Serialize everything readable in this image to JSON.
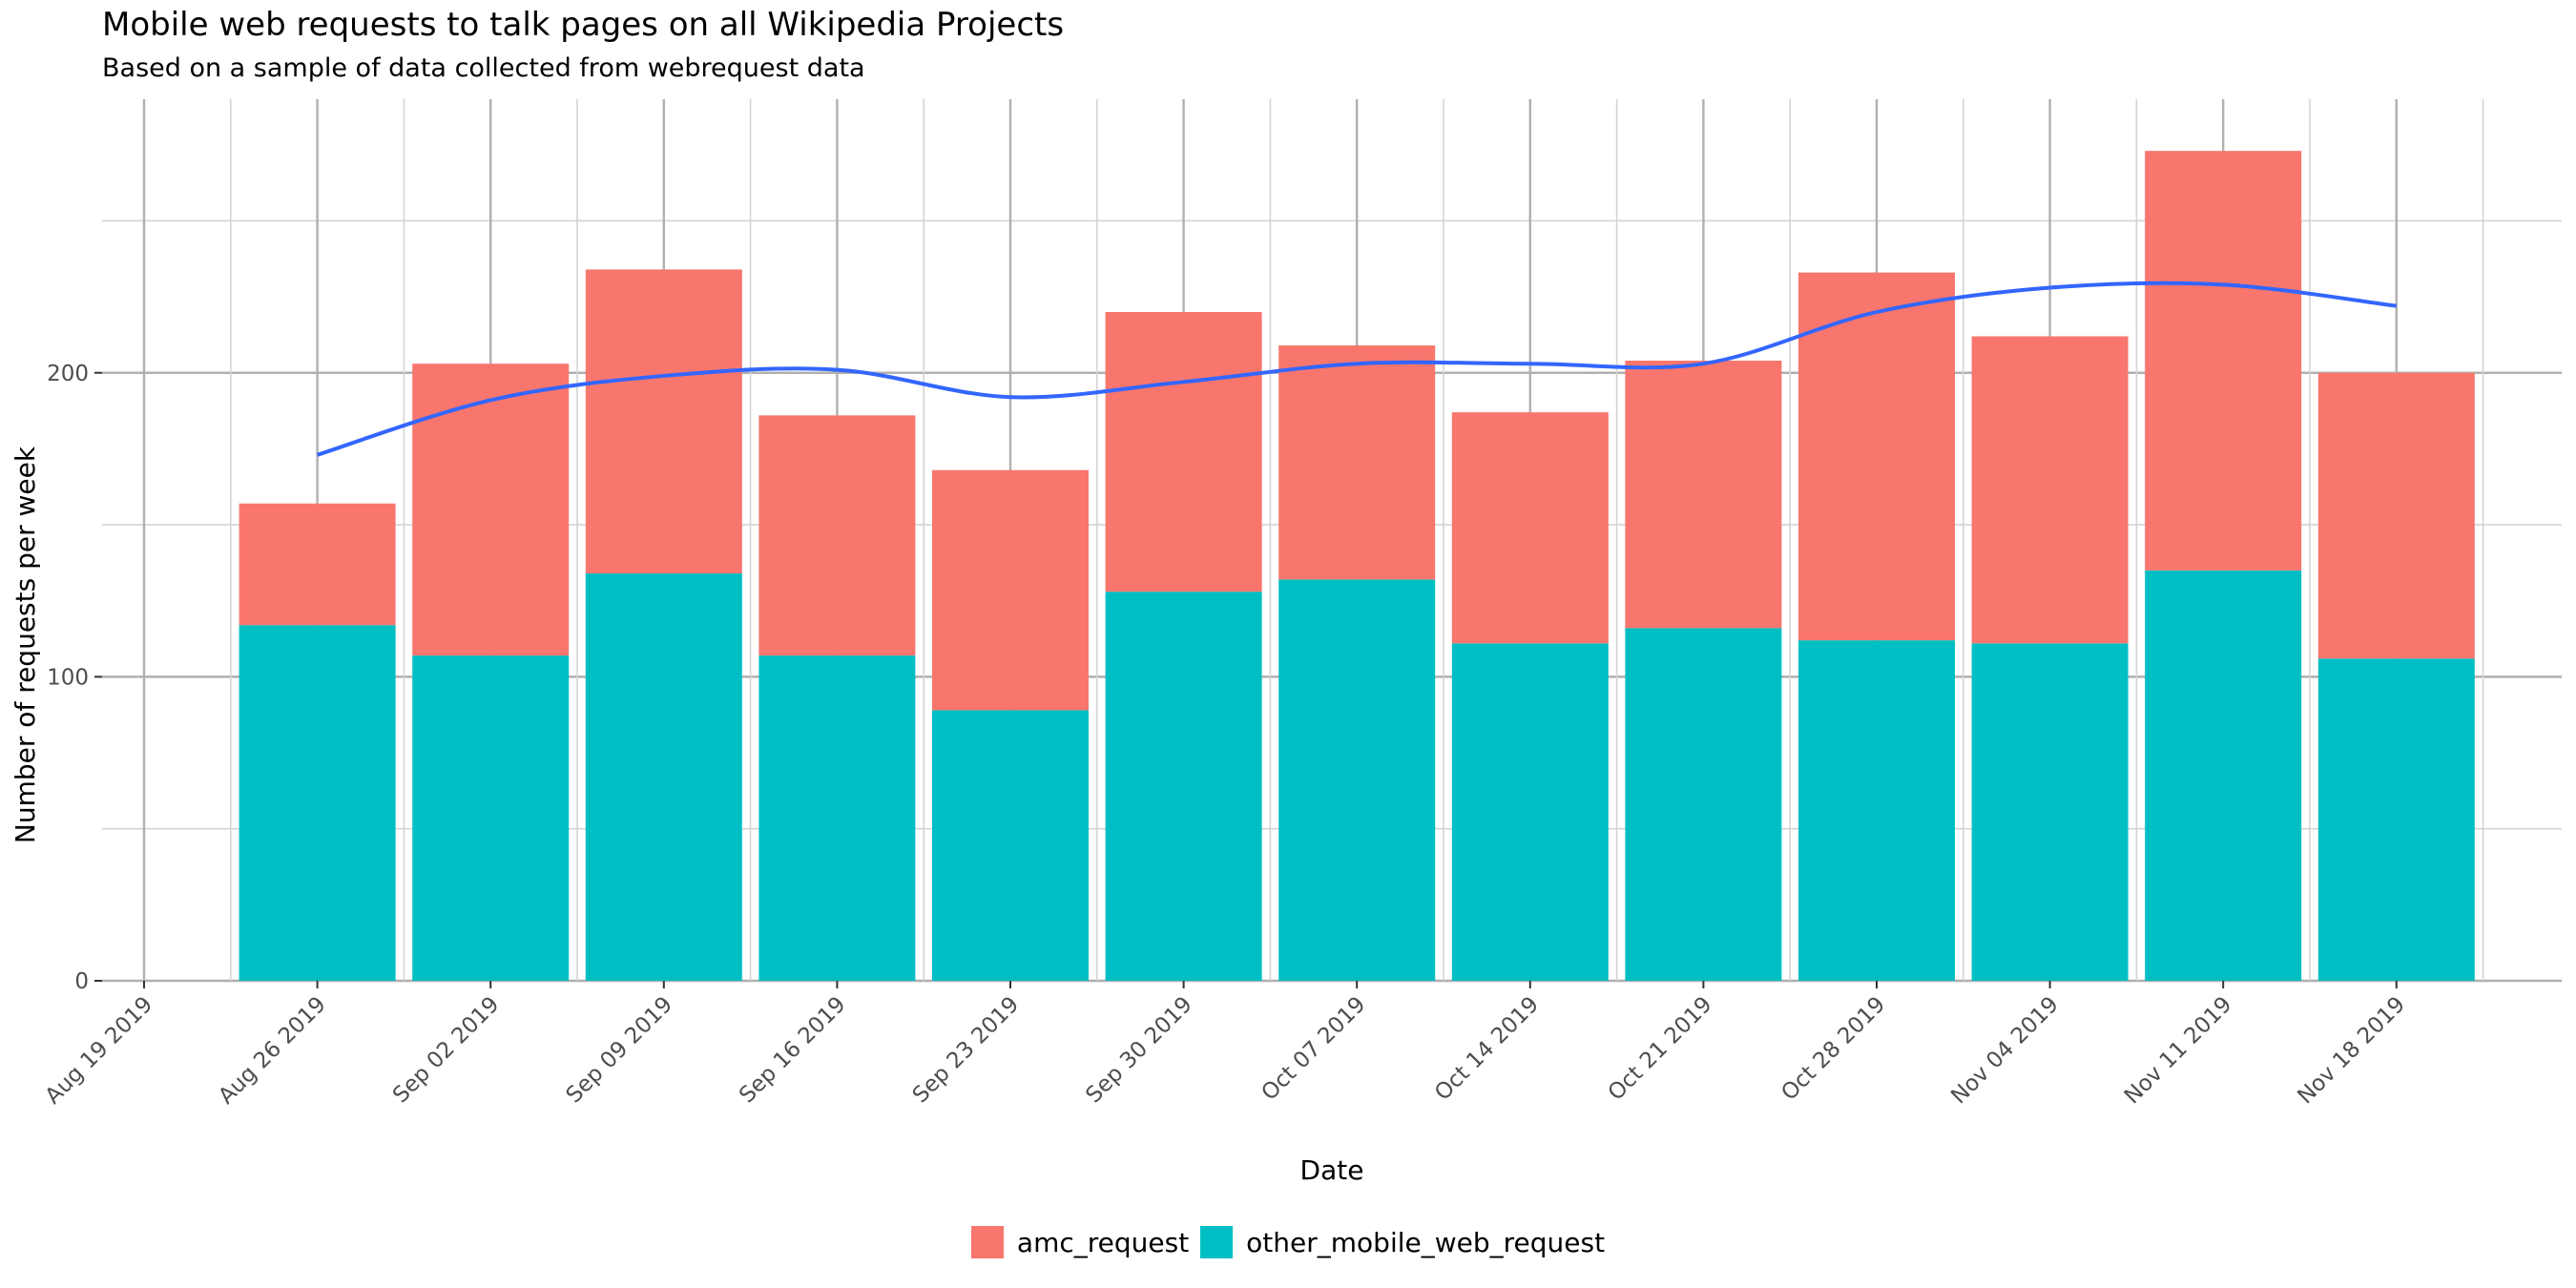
{
  "chart_data": {
    "type": "bar",
    "stacked": true,
    "title": "Mobile web requests to talk pages on all Wikipedia Projects",
    "subtitle": "Based on a sample of data collected from webrequest data",
    "xlabel": "Date",
    "ylabel": "Number of requests per week",
    "x_tick_labels": [
      "Aug 19 2019",
      "Aug 26 2019",
      "Sep 02 2019",
      "Sep 09 2019",
      "Sep 16 2019",
      "Sep 23 2019",
      "Sep 30 2019",
      "Oct 07 2019",
      "Oct 14 2019",
      "Oct 21 2019",
      "Oct 28 2019",
      "Nov 04 2019",
      "Nov 11 2019",
      "Nov 18 2019"
    ],
    "y_ticks": [
      0,
      100,
      200
    ],
    "ylim": [
      0,
      290
    ],
    "categories": [
      "Aug 26 2019",
      "Sep 02 2019",
      "Sep 09 2019",
      "Sep 16 2019",
      "Sep 23 2019",
      "Sep 30 2019",
      "Oct 07 2019",
      "Oct 14 2019",
      "Oct 21 2019",
      "Oct 28 2019",
      "Nov 04 2019",
      "Nov 11 2019",
      "Nov 18 2019"
    ],
    "series": [
      {
        "name": "other_mobile_web_request",
        "color": "#00BFC4",
        "values": [
          117,
          107,
          134,
          107,
          89,
          128,
          132,
          111,
          116,
          112,
          111,
          135,
          106
        ]
      },
      {
        "name": "amc_request",
        "color": "#F8766D",
        "values": [
          40,
          96,
          100,
          79,
          79,
          92,
          77,
          76,
          88,
          121,
          101,
          138,
          94
        ]
      }
    ],
    "smooth_line": {
      "color": "#3366FF",
      "x": [
        "Aug 26 2019",
        "Sep 02 2019",
        "Sep 09 2019",
        "Sep 16 2019",
        "Sep 23 2019",
        "Sep 30 2019",
        "Oct 07 2019",
        "Oct 14 2019",
        "Oct 21 2019",
        "Oct 28 2019",
        "Nov 04 2019",
        "Nov 11 2019",
        "Nov 18 2019"
      ],
      "values": [
        173,
        191,
        199,
        201,
        192,
        197,
        203,
        203,
        203,
        220,
        228,
        229,
        222
      ]
    },
    "grid": true,
    "legend": {
      "position": "bottom",
      "order": [
        "amc_request",
        "other_mobile_web_request"
      ]
    }
  }
}
